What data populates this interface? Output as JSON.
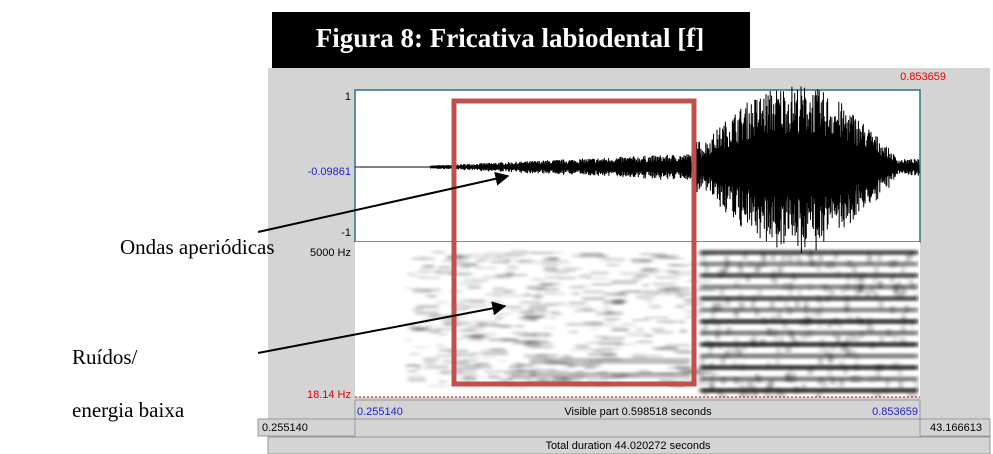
{
  "figure": {
    "title": "Figura 8: Fricativa labiodental [f]",
    "annotations": [
      "Ondas aperiódicas",
      "Ruídos/",
      "energia baixa"
    ],
    "window": {
      "cursor_top": "0.853659",
      "amp_max": "1",
      "amp_cursor": "-0.09861",
      "amp_min": "-1",
      "freq_max": "5000 Hz",
      "freq_min": "18.14 Hz",
      "visible_start": "0.255140",
      "visible_label": "Visible part 0.598518 seconds",
      "visible_end": "0.853659",
      "left_hidden": "0.255140",
      "right_hidden": "43.166613",
      "total": "Total duration 44.020272 seconds"
    }
  }
}
